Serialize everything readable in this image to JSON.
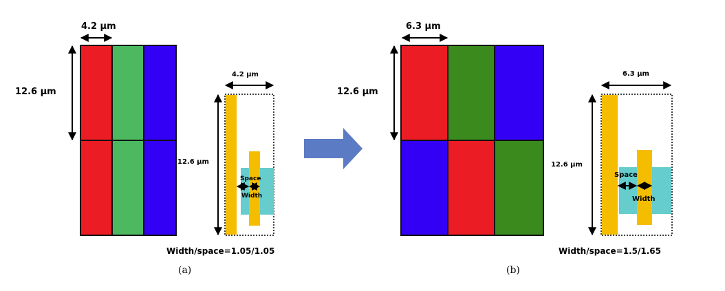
{
  "colors": {
    "red": "#ec1c24",
    "green_a": "#4cb960",
    "green_b": "#3a8a1e",
    "blue": "#3300f5",
    "gold": "#f5bd00",
    "cyan": "#66cccc",
    "arrow": "#5b7bc4"
  },
  "panel_a": {
    "grid_width_label": "4.2 μm",
    "grid_height_label": "12.6 μm",
    "detail_width_label": "4.2 μm",
    "detail_height_label": "12.6 μm",
    "space_label": "Space",
    "width_label": "Width",
    "ratio_label": "Width/space=1.05/1.05",
    "caption": "(a)"
  },
  "panel_b": {
    "grid_width_label": "6.3 μm",
    "grid_height_label": "12.6 μm",
    "detail_width_label": "6.3 μm",
    "detail_height_label": "12.6 μm",
    "space_label": "Space",
    "width_label": "Width",
    "ratio_label": "Width/space=1.5/1.65",
    "caption": "(b)"
  },
  "transition_arrow_icon": "right-arrow-icon"
}
